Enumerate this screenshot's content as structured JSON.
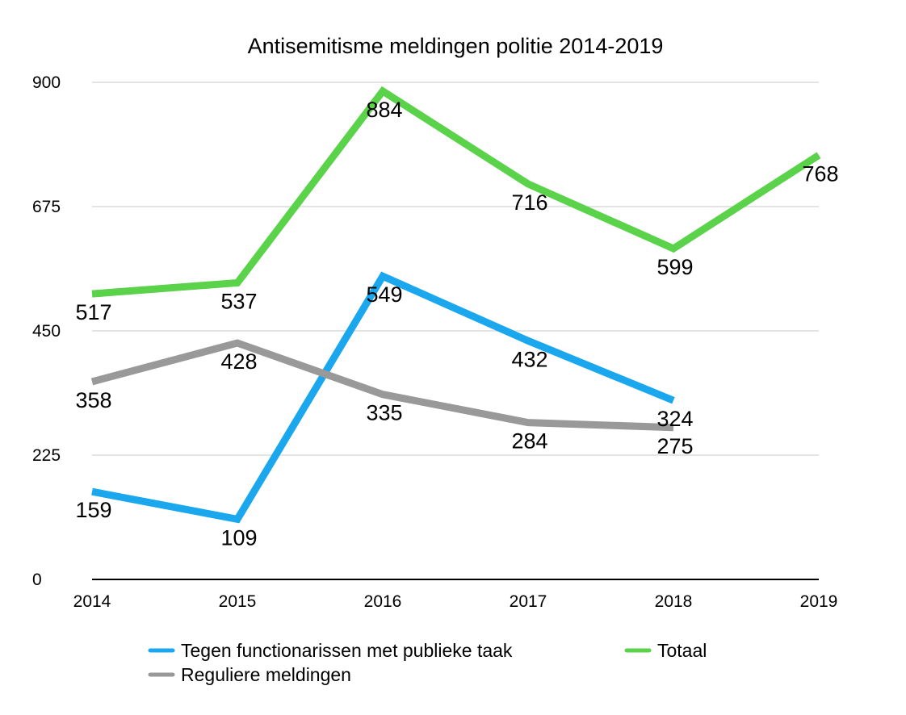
{
  "chart_data": {
    "type": "line",
    "title": "Antisemitisme meldingen politie 2014-2019",
    "xlabel": "",
    "ylabel": "",
    "categories": [
      "2014",
      "2015",
      "2016",
      "2017",
      "2018",
      "2019"
    ],
    "ylim": [
      0,
      900
    ],
    "yticks": [
      0,
      225,
      450,
      675,
      900
    ],
    "grid": true,
    "legend_position": "bottom",
    "series": [
      {
        "name": "Tegen functionarissen met publieke taak",
        "color": "#1aa7ee",
        "values": [
          159,
          109,
          549,
          432,
          324,
          null
        ]
      },
      {
        "name": "Reguliere meldingen",
        "color": "#999999",
        "values": [
          358,
          428,
          335,
          284,
          275,
          null
        ]
      },
      {
        "name": "Totaal",
        "color": "#5ad24a",
        "values": [
          517,
          537,
          884,
          716,
          599,
          768
        ]
      }
    ]
  }
}
